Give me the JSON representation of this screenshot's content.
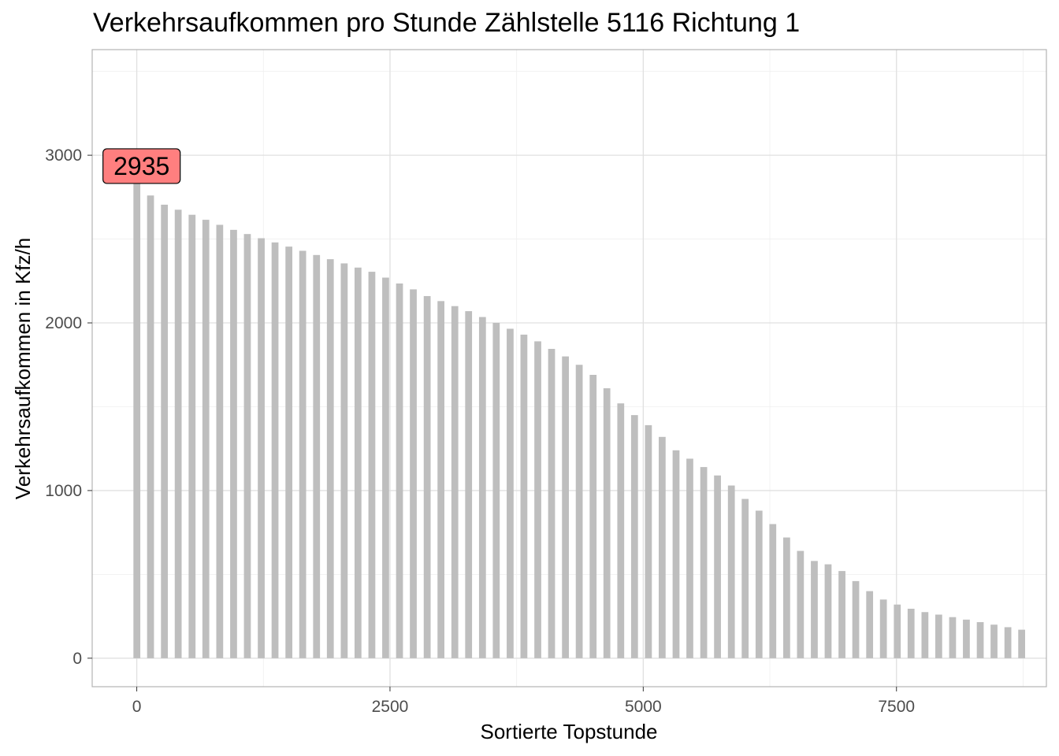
{
  "chart_data": {
    "type": "bar",
    "title": "Verkehrsaufkommen pro Stunde Zählstelle 5116 Richtung 1",
    "xlabel": "Sortierte Topstunde",
    "ylabel": "Verkehrsaufkommen in Kfz/h",
    "xlim": [
      -440,
      8980
    ],
    "ylim": [
      -170,
      3630
    ],
    "x_ticks": [
      0,
      2500,
      5000,
      7500
    ],
    "x_tick_labels": [
      "0",
      "2500",
      "5000",
      "7500"
    ],
    "y_ticks": [
      0,
      1000,
      2000,
      3000
    ],
    "y_tick_labels": [
      "0",
      "1000",
      "2000",
      "3000"
    ],
    "grid": true,
    "bar_width": 68,
    "x": [
      1,
      136,
      273,
      409,
      546,
      682,
      819,
      956,
      1092,
      1229,
      1365,
      1502,
      1638,
      1775,
      1911,
      2048,
      2184,
      2321,
      2457,
      2594,
      2730,
      2867,
      3003,
      3140,
      3276,
      3413,
      3549,
      3686,
      3822,
      3959,
      4095,
      4232,
      4368,
      4505,
      4641,
      4778,
      4914,
      5051,
      5187,
      5324,
      5460,
      5597,
      5733,
      5870,
      6006,
      6143,
      6279,
      6416,
      6552,
      6689,
      6825,
      6962,
      7098,
      7235,
      7371,
      7508,
      7644,
      7781,
      7917,
      8054,
      8190,
      8327,
      8463,
      8600,
      8736
    ],
    "values": [
      2935,
      2760,
      2705,
      2675,
      2645,
      2615,
      2585,
      2555,
      2530,
      2505,
      2480,
      2455,
      2430,
      2405,
      2380,
      2355,
      2330,
      2305,
      2270,
      2235,
      2200,
      2160,
      2130,
      2100,
      2070,
      2035,
      2000,
      1965,
      1930,
      1890,
      1845,
      1800,
      1750,
      1690,
      1610,
      1520,
      1450,
      1390,
      1320,
      1240,
      1190,
      1140,
      1090,
      1030,
      950,
      880,
      800,
      720,
      640,
      580,
      560,
      520,
      460,
      400,
      350,
      320,
      295,
      275,
      260,
      245,
      230,
      215,
      200,
      185,
      170
    ],
    "annotation": {
      "label": "2935",
      "x": 1,
      "y": 2935,
      "color": "#ff7f7f"
    },
    "colors": {
      "bar": "#bebebe",
      "grid": "#e0e0e0",
      "annotation_fill": "#ff7f7f"
    }
  }
}
